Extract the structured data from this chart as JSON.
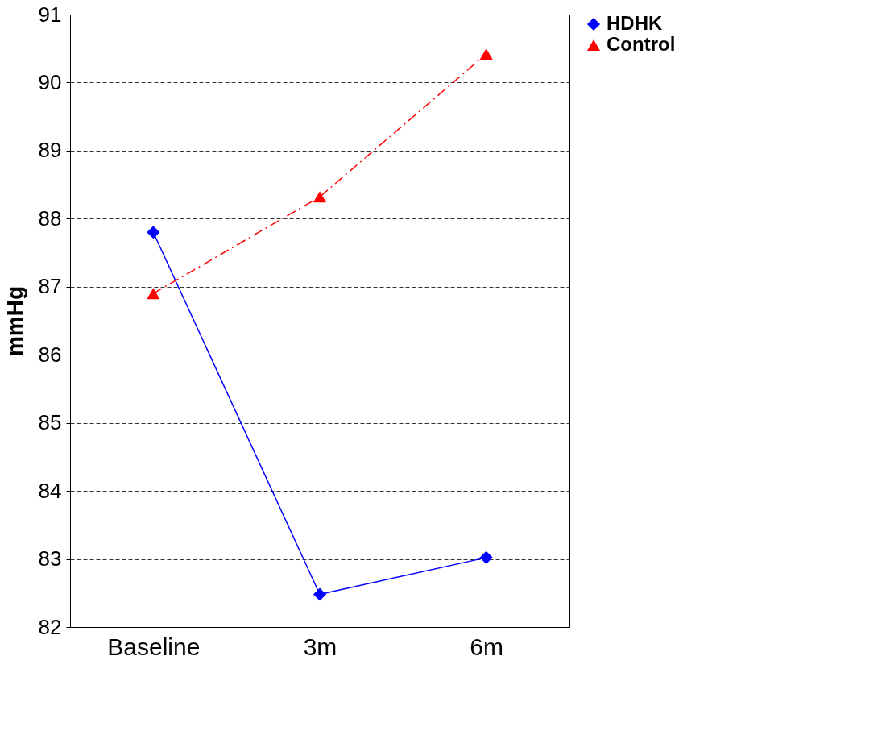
{
  "chart_data": {
    "type": "line",
    "ylabel": "mmHg",
    "categories": [
      "Baseline",
      "3m",
      "6m"
    ],
    "series": [
      {
        "name": "HDHK",
        "color": "#0000ff",
        "values": [
          87.8,
          82.48,
          83.02
        ],
        "marker": "diamond",
        "line_style": "solid"
      },
      {
        "name": "Control",
        "color": "#ff0000",
        "values": [
          86.9,
          88.32,
          90.42
        ],
        "marker": "triangle",
        "line_style": "dashed"
      }
    ],
    "ylim": [
      82,
      91
    ],
    "yticks": [
      82,
      83,
      84,
      85,
      86,
      87,
      88,
      89,
      90,
      91
    ],
    "grid": "y",
    "legend": "top right"
  }
}
